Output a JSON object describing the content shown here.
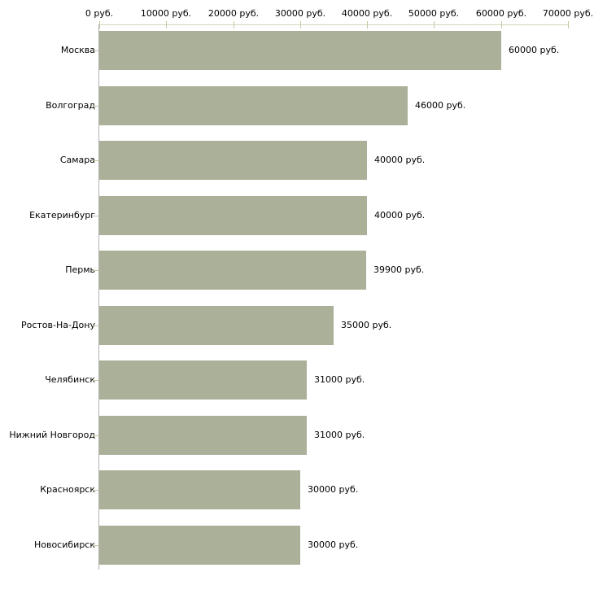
{
  "chart_data": {
    "type": "bar",
    "orientation": "horizontal",
    "title": "",
    "categories": [
      "Москва",
      "Волгоград",
      "Самара",
      "Екатеринбург",
      "Пермь",
      "Ростов-На-Дону",
      "Челябинск",
      "Нижний Новгород",
      "Красноярск",
      "Новосибирск"
    ],
    "values": [
      60000,
      46000,
      40000,
      40000,
      39900,
      35000,
      31000,
      31000,
      30000,
      30000
    ],
    "bar_labels": [
      "60000 руб.",
      "46000 руб.",
      "40000 руб.",
      "40000 руб.",
      "39900 руб.",
      "35000 руб.",
      "31000 руб.",
      "31000 руб.",
      "30000 руб.",
      "30000 руб."
    ],
    "x_axis_ticks": [
      {
        "value": 0,
        "label": "0 руб."
      },
      {
        "value": 10000,
        "label": "10000 руб."
      },
      {
        "value": 20000,
        "label": "20000 руб."
      },
      {
        "value": 30000,
        "label": "30000 руб."
      },
      {
        "value": 40000,
        "label": "40000 руб."
      },
      {
        "value": 50000,
        "label": "50000 руб."
      },
      {
        "value": 60000,
        "label": "60000 руб."
      },
      {
        "value": 70000,
        "label": "70000 руб."
      }
    ],
    "xlabel": "",
    "ylabel": "",
    "xlim": [
      0,
      70000
    ],
    "grid": false,
    "legend_position": "none",
    "colors": {
      "bar": "#abb199",
      "x_axis_line": "#d4d5bc",
      "x_axis_tick": "#c5c6a5",
      "category_tick": "#c5c6a5",
      "y_axis_line": "#b3b3b3",
      "text": "#000000",
      "background": "#ffffff"
    }
  }
}
